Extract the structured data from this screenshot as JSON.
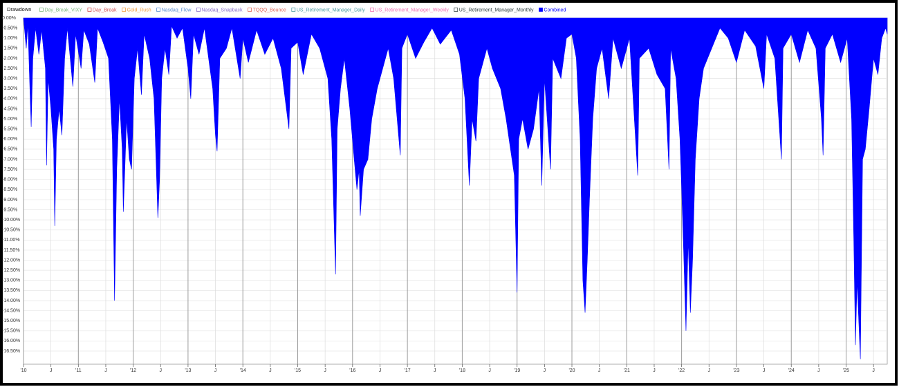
{
  "chart_data": {
    "type": "area",
    "title": "Drawdown",
    "hidden_series": [
      {
        "name": "Day_Break_VIXY",
        "color": "#7fb87f"
      },
      {
        "name": "Day_Break",
        "color": "#d05050"
      },
      {
        "name": "Gold_Rush",
        "color": "#f0a040"
      },
      {
        "name": "Nasdaq_Flow",
        "color": "#5b8fd0"
      },
      {
        "name": "Nasdaq_Snapback",
        "color": "#8a70c8"
      },
      {
        "name": "TQQQ_Bounce",
        "color": "#e06a5a"
      },
      {
        "name": "US_Retirement_Manager_Daily",
        "color": "#4a9aa0"
      },
      {
        "name": "US_Retirement_Manager_Weekly",
        "color": "#f070b0"
      },
      {
        "name": "US_Retirement_Manager_Monthly",
        "color": "#2f3f3f"
      }
    ],
    "x": [
      2010.0,
      2010.05,
      2010.08,
      2010.12,
      2010.14,
      2010.17,
      2010.22,
      2010.28,
      2010.33,
      2010.4,
      2010.42,
      2010.45,
      2010.5,
      2010.55,
      2010.57,
      2010.6,
      2010.65,
      2010.7,
      2010.75,
      2010.8,
      2010.9,
      2010.95,
      2011.05,
      2011.1,
      2011.2,
      2011.3,
      2011.35,
      2011.45,
      2011.55,
      2011.62,
      2011.66,
      2011.7,
      2011.75,
      2011.8,
      2011.82,
      2011.88,
      2011.93,
      2011.97,
      2012.02,
      2012.08,
      2012.15,
      2012.2,
      2012.3,
      2012.38,
      2012.45,
      2012.48,
      2012.52,
      2012.58,
      2012.65,
      2012.7,
      2012.8,
      2012.9,
      2013.0,
      2013.05,
      2013.1,
      2013.2,
      2013.3,
      2013.45,
      2013.5,
      2013.53,
      2013.58,
      2013.7,
      2013.8,
      2013.95,
      2014.0,
      2014.1,
      2014.25,
      2014.4,
      2014.55,
      2014.7,
      2014.84,
      2014.88,
      2015.0,
      2015.1,
      2015.25,
      2015.4,
      2015.55,
      2015.62,
      2015.69,
      2015.72,
      2015.78,
      2015.85,
      2015.95,
      2016.03,
      2016.08,
      2016.12,
      2016.14,
      2016.2,
      2016.28,
      2016.35,
      2016.45,
      2016.55,
      2016.65,
      2016.75,
      2016.87,
      2016.9,
      2017.0,
      2017.15,
      2017.3,
      2017.45,
      2017.6,
      2017.8,
      2017.95,
      2018.05,
      2018.13,
      2018.18,
      2018.25,
      2018.3,
      2018.45,
      2018.55,
      2018.7,
      2018.8,
      2018.88,
      2018.95,
      2019.0,
      2019.03,
      2019.1,
      2019.2,
      2019.3,
      2019.4,
      2019.45,
      2019.5,
      2019.61,
      2019.65,
      2019.8,
      2019.9,
      2020.0,
      2020.08,
      2020.15,
      2020.2,
      2020.24,
      2020.28,
      2020.32,
      2020.38,
      2020.45,
      2020.55,
      2020.67,
      2020.75,
      2020.9,
      2021.05,
      2021.2,
      2021.23,
      2021.4,
      2021.55,
      2021.7,
      2021.77,
      2021.8,
      2021.9,
      2021.97,
      2022.02,
      2022.08,
      2022.12,
      2022.16,
      2022.2,
      2022.25,
      2022.32,
      2022.4,
      2022.55,
      2022.7,
      2022.85,
      2023.0,
      2023.15,
      2023.35,
      2023.5,
      2023.55,
      2023.7,
      2023.82,
      2023.85,
      2024.0,
      2024.15,
      2024.3,
      2024.45,
      2024.55,
      2024.58,
      2024.62,
      2024.75,
      2024.9,
      2025.02,
      2025.1,
      2025.14,
      2025.17,
      2025.2,
      2025.26,
      2025.3,
      2025.35,
      2025.42,
      2025.5,
      2025.58,
      2025.65,
      2025.72,
      2025.75
    ],
    "series": [
      {
        "name": "Combined",
        "color": "#0000ff",
        "values": [
          0,
          -1.5,
          -0.3,
          -3.8,
          -5.4,
          -2.0,
          -0.5,
          -1.8,
          -0.6,
          -2.5,
          -7.3,
          -3.0,
          -4.5,
          -6.5,
          -10.3,
          -6.0,
          -4.5,
          -5.8,
          -2.0,
          -0.5,
          -3.4,
          -0.8,
          -2.5,
          -0.6,
          -1.3,
          -3.2,
          -0.5,
          -1.2,
          -2.0,
          -6.0,
          -14.0,
          -7.5,
          -4.0,
          -6.5,
          -9.6,
          -5.0,
          -7.0,
          -7.5,
          -3.0,
          -1.5,
          -3.8,
          -0.8,
          -2.0,
          -4.0,
          -9.9,
          -8.1,
          -3.0,
          -1.5,
          -2.8,
          -0.4,
          -1.0,
          -0.5,
          -2.5,
          -4.0,
          -0.8,
          -1.8,
          -0.5,
          -3.5,
          -5.8,
          -6.6,
          -2.0,
          -1.5,
          -0.5,
          -3.0,
          -1.0,
          -2.2,
          -0.6,
          -1.8,
          -1.0,
          -2.5,
          -5.5,
          -1.5,
          -1.2,
          -2.8,
          -0.8,
          -1.5,
          -3.0,
          -6.0,
          -12.7,
          -5.5,
          -3.5,
          -2.0,
          -4.5,
          -7.0,
          -8.5,
          -7.5,
          -9.8,
          -7.5,
          -7.0,
          -5.0,
          -3.5,
          -2.5,
          -1.5,
          -3.0,
          -6.8,
          -1.5,
          -0.8,
          -2.0,
          -1.2,
          -0.5,
          -1.3,
          -0.6,
          -1.8,
          -4.0,
          -8.3,
          -5.0,
          -6.1,
          -3.0,
          -1.5,
          -2.5,
          -3.5,
          -5.0,
          -6.5,
          -7.8,
          -13.6,
          -6.0,
          -5.0,
          -6.5,
          -5.5,
          -3.5,
          -8.3,
          -3.0,
          -7.5,
          -2.0,
          -3.0,
          -1.0,
          -0.8,
          -2.0,
          -6.0,
          -13.0,
          -14.6,
          -12.0,
          -9.0,
          -5.0,
          -2.5,
          -1.5,
          -4.0,
          -1.0,
          -2.5,
          -1.0,
          -7.8,
          -2.0,
          -1.5,
          -2.8,
          -3.5,
          -7.5,
          -1.5,
          -3.0,
          -6.0,
          -10.0,
          -15.5,
          -11.0,
          -14.6,
          -12.0,
          -7.0,
          -4.0,
          -2.5,
          -1.5,
          -0.5,
          -1.0,
          -2.2,
          -0.6,
          -1.4,
          -3.5,
          -0.8,
          -2.0,
          -7.0,
          -1.5,
          -0.8,
          -2.2,
          -0.6,
          -1.5,
          -5.0,
          -6.8,
          -1.5,
          -0.8,
          -2.2,
          -1.0,
          -5.0,
          -11.0,
          -16.2,
          -13.0,
          -16.9,
          -7.0,
          -6.5,
          -4.5,
          -2.0,
          -2.8,
          -1.0,
          -0.5,
          -0.8
        ]
      }
    ],
    "xlim": [
      2010,
      2025.75
    ],
    "xticks": [
      {
        "value": 2010,
        "label": "'10"
      },
      {
        "value": 2010.5,
        "label": "J"
      },
      {
        "value": 2011,
        "label": "'11"
      },
      {
        "value": 2011.5,
        "label": "J"
      },
      {
        "value": 2012,
        "label": "'12"
      },
      {
        "value": 2012.5,
        "label": "J"
      },
      {
        "value": 2013,
        "label": "'13"
      },
      {
        "value": 2013.5,
        "label": "J"
      },
      {
        "value": 2014,
        "label": "'14"
      },
      {
        "value": 2014.5,
        "label": "J"
      },
      {
        "value": 2015,
        "label": "'15"
      },
      {
        "value": 2015.5,
        "label": "J"
      },
      {
        "value": 2016,
        "label": "'16"
      },
      {
        "value": 2016.5,
        "label": "J"
      },
      {
        "value": 2017,
        "label": "'17"
      },
      {
        "value": 2017.5,
        "label": "J"
      },
      {
        "value": 2018,
        "label": "'18"
      },
      {
        "value": 2018.5,
        "label": "J"
      },
      {
        "value": 2019,
        "label": "'19"
      },
      {
        "value": 2019.5,
        "label": "J"
      },
      {
        "value": 2020,
        "label": "'20"
      },
      {
        "value": 2020.5,
        "label": "J"
      },
      {
        "value": 2021,
        "label": "'21"
      },
      {
        "value": 2021.5,
        "label": "J"
      },
      {
        "value": 2022,
        "label": "'22"
      },
      {
        "value": 2022.5,
        "label": "J"
      },
      {
        "value": 2023,
        "label": "'23"
      },
      {
        "value": 2023.5,
        "label": "J"
      },
      {
        "value": 2024,
        "label": "'24"
      },
      {
        "value": 2024.5,
        "label": "J"
      },
      {
        "value": 2025,
        "label": "'25"
      },
      {
        "value": 2025.5,
        "label": "J"
      }
    ],
    "ylim": [
      -17.15,
      0
    ],
    "yticks": [
      {
        "value": 0,
        "label": "0.00%"
      },
      {
        "value": -0.5,
        "label": "-0.50%"
      },
      {
        "value": -1,
        "label": "-1.00%"
      },
      {
        "value": -1.5,
        "label": "-1.50%"
      },
      {
        "value": -2,
        "label": "-2.00%"
      },
      {
        "value": -2.5,
        "label": "-2.50%"
      },
      {
        "value": -3,
        "label": "-3.00%"
      },
      {
        "value": -3.5,
        "label": "-3.50%"
      },
      {
        "value": -4,
        "label": "-4.00%"
      },
      {
        "value": -4.5,
        "label": "-4.50%"
      },
      {
        "value": -5,
        "label": "-5.00%"
      },
      {
        "value": -5.5,
        "label": "-5.50%"
      },
      {
        "value": -6,
        "label": "-6.00%"
      },
      {
        "value": -6.5,
        "label": "-6.50%"
      },
      {
        "value": -7,
        "label": "-7.00%"
      },
      {
        "value": -7.5,
        "label": "-7.50%"
      },
      {
        "value": -8,
        "label": "-8.00%"
      },
      {
        "value": -8.5,
        "label": "-8.50%"
      },
      {
        "value": -9,
        "label": "-9.00%"
      },
      {
        "value": -9.5,
        "label": "-9.50%"
      },
      {
        "value": -10,
        "label": "-10.00%"
      },
      {
        "value": -10.5,
        "label": "-10.50%"
      },
      {
        "value": -11,
        "label": "-11.00%"
      },
      {
        "value": -11.5,
        "label": "-11.50%"
      },
      {
        "value": -12,
        "label": "-12.00%"
      },
      {
        "value": -12.5,
        "label": "-12.50%"
      },
      {
        "value": -13,
        "label": "-13.00%"
      },
      {
        "value": -13.5,
        "label": "-13.50%"
      },
      {
        "value": -14,
        "label": "-14.00%"
      },
      {
        "value": -14.5,
        "label": "-14.50%"
      },
      {
        "value": -15,
        "label": "-15.00%"
      },
      {
        "value": -15.5,
        "label": "-15.50%"
      },
      {
        "value": -16,
        "label": "-16.00%"
      },
      {
        "value": -16.5,
        "label": "-16.50%"
      }
    ],
    "grid": true
  }
}
